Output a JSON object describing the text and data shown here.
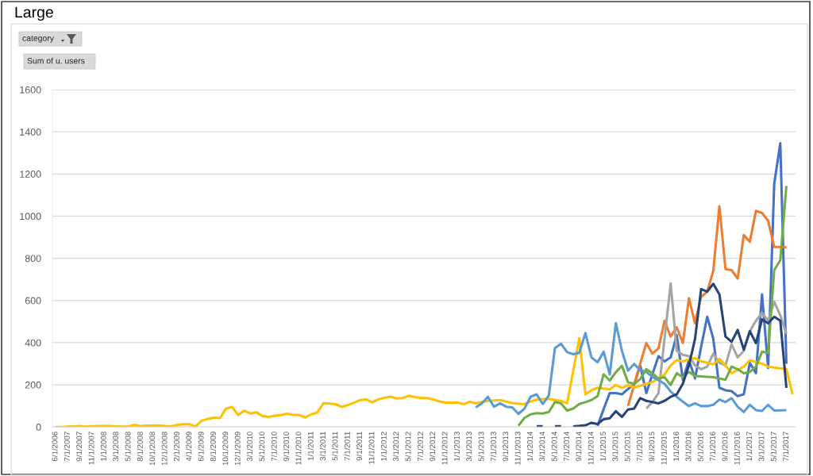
{
  "chart_data": {
    "type": "line",
    "title": "Large",
    "annotations": [
      "category",
      "Sum of u. users"
    ],
    "grid": "y",
    "line_style": "solid",
    "ylim": [
      0,
      1600
    ],
    "yticks": [
      0,
      200,
      400,
      600,
      800,
      1000,
      1200,
      1400,
      1600
    ],
    "categories": [
      "6/1/2006",
      null,
      "7/1/2007",
      null,
      "9/1/2007",
      null,
      "11/1/2007",
      null,
      "1/1/2008",
      null,
      "3/1/2008",
      null,
      "5/1/2008",
      null,
      "8/1/2008",
      null,
      "10/1/2008",
      null,
      "12/1/2008",
      null,
      "2/1/2009",
      null,
      "4/1/2009",
      null,
      "6/1/2009",
      null,
      "8/1/2009",
      null,
      "10/1/2009",
      null,
      "12/1/2009",
      null,
      "3/1/2010",
      null,
      "5/1/2010",
      null,
      "7/1/2010",
      null,
      "9/1/2010",
      null,
      "11/1/2010",
      null,
      "1/1/2011",
      null,
      "3/1/2011",
      null,
      "5/1/2011",
      null,
      "7/1/2011",
      null,
      "9/1/2011",
      null,
      "11/1/2011",
      null,
      "1/1/2012",
      null,
      "3/1/2012",
      null,
      "5/1/2012",
      null,
      "7/1/2012",
      null,
      "9/1/2012",
      null,
      "11/1/2012",
      null,
      "1/1/2013",
      null,
      "3/1/2013",
      null,
      "5/1/2013",
      null,
      "7/1/2013",
      null,
      "9/1/2013",
      null,
      "11/1/2013",
      null,
      "1/1/2014",
      null,
      "3/1/2014",
      null,
      "5/1/2014",
      null,
      "7/1/2014",
      null,
      "9/1/2014",
      null,
      "11/1/2014",
      null,
      "1/1/2015",
      null,
      "3/1/2015",
      null,
      "5/1/2015",
      null,
      "7/1/2015",
      null,
      "9/1/2015",
      null,
      "11/1/2015",
      null,
      "1/1/2016",
      null,
      "3/1/2016",
      null,
      "5/1/2016",
      null,
      "7/1/2016",
      null,
      "9/1/2016",
      null,
      "11/1/2016",
      null,
      "1/1/2017",
      null,
      "3/1/2017",
      null,
      "5/1/2017",
      null,
      "7/1/2017",
      null
    ],
    "series": [
      {
        "color": "#4472c4",
        "values": [
          null,
          null,
          null,
          null,
          null,
          null,
          null,
          null,
          null,
          null,
          null,
          null,
          null,
          null,
          null,
          null,
          null,
          null,
          null,
          null,
          null,
          null,
          null,
          null,
          null,
          null,
          null,
          null,
          null,
          null,
          null,
          null,
          null,
          null,
          null,
          null,
          null,
          null,
          null,
          null,
          null,
          null,
          null,
          null,
          null,
          null,
          null,
          null,
          null,
          null,
          null,
          null,
          null,
          null,
          null,
          null,
          null,
          null,
          null,
          null,
          null,
          null,
          null,
          null,
          null,
          null,
          null,
          null,
          null,
          null,
          null,
          null,
          null,
          null,
          null,
          null,
          null,
          null,
          null,
          null,
          null,
          null,
          null,
          null,
          null,
          null,
          null,
          null,
          null,
          5,
          85,
          161,
          161,
          155,
          180,
          200,
          292,
          161,
          250,
          336,
          311,
          330,
          436,
          224,
          317,
          230,
          380,
          523,
          418,
          186,
          174,
          170,
          146,
          155,
          304,
          255,
          629,
          280,
          1153,
          1346,
          300,
          null
        ]
      },
      {
        "color": "#ed7d31",
        "values": [
          null,
          null,
          null,
          null,
          null,
          null,
          null,
          null,
          null,
          null,
          null,
          null,
          null,
          null,
          null,
          null,
          null,
          null,
          null,
          null,
          null,
          null,
          null,
          null,
          null,
          null,
          null,
          null,
          null,
          null,
          null,
          null,
          null,
          null,
          null,
          null,
          null,
          null,
          null,
          null,
          null,
          null,
          null,
          null,
          null,
          null,
          null,
          null,
          null,
          null,
          null,
          null,
          null,
          null,
          null,
          null,
          null,
          null,
          null,
          null,
          null,
          null,
          null,
          null,
          null,
          null,
          null,
          null,
          null,
          null,
          null,
          null,
          null,
          null,
          null,
          null,
          null,
          null,
          null,
          null,
          null,
          null,
          null,
          null,
          null,
          null,
          null,
          null,
          null,
          null,
          null,
          null,
          null,
          null,
          100,
          200,
          300,
          398,
          348,
          373,
          504,
          429,
          473,
          398,
          610,
          492,
          617,
          642,
          741,
          1047,
          749,
          744,
          704,
          910,
          879,
          1025,
          1015,
          978,
          854,
          854,
          852,
          null
        ]
      },
      {
        "color": "#a5a5a5",
        "values": [
          null,
          null,
          null,
          null,
          null,
          null,
          null,
          null,
          null,
          null,
          null,
          null,
          null,
          null,
          null,
          null,
          null,
          null,
          null,
          null,
          null,
          null,
          null,
          null,
          null,
          null,
          null,
          null,
          null,
          null,
          null,
          null,
          null,
          null,
          null,
          null,
          null,
          null,
          null,
          null,
          null,
          null,
          null,
          null,
          null,
          null,
          null,
          null,
          null,
          null,
          null,
          null,
          null,
          null,
          null,
          null,
          null,
          null,
          null,
          null,
          null,
          null,
          null,
          null,
          null,
          null,
          null,
          null,
          null,
          null,
          null,
          null,
          null,
          null,
          null,
          null,
          null,
          null,
          null,
          null,
          null,
          null,
          null,
          null,
          null,
          null,
          null,
          null,
          null,
          null,
          null,
          null,
          null,
          null,
          null,
          null,
          null,
          87,
          118,
          160,
          420,
          681,
          361,
          342,
          336,
          292,
          274,
          286,
          348,
          304,
          292,
          392,
          330,
          361,
          454,
          504,
          541,
          504,
          594,
          529,
          442,
          null
        ]
      },
      {
        "color": "#ffc000",
        "values": [
          0,
          0,
          2,
          3,
          4,
          2,
          3,
          4,
          4,
          4,
          3,
          2,
          2,
          10,
          4,
          6,
          6,
          7,
          4,
          3,
          10,
          13,
          13,
          2,
          30,
          38,
          44,
          42,
          87,
          95,
          57,
          77,
          64,
          69,
          52,
          48,
          53,
          56,
          63,
          57,
          57,
          45,
          60,
          69,
          113,
          111,
          108,
          95,
          104,
          115,
          127,
          131,
          117,
          131,
          138,
          144,
          135,
          137,
          148,
          142,
          137,
          137,
          131,
          121,
          116,
          115,
          116,
          108,
          120,
          112,
          118,
          124,
          126,
          128,
          120,
          114,
          110,
          109,
          120,
          130,
          132,
          133,
          128,
          124,
          112,
          265,
          420,
          155,
          174,
          186,
          182,
          178,
          199,
          186,
          199,
          187,
          195,
          205,
          212,
          230,
          249,
          292,
          317,
          311,
          320,
          327,
          311,
          305,
          297,
          323,
          292,
          255,
          270,
          286,
          317,
          308,
          300,
          286,
          282,
          278,
          274,
          155
        ]
      },
      {
        "color": "#5b9bd5",
        "values": [
          null,
          null,
          null,
          null,
          null,
          null,
          null,
          null,
          null,
          null,
          null,
          null,
          null,
          null,
          null,
          null,
          null,
          null,
          null,
          null,
          null,
          null,
          null,
          null,
          null,
          null,
          null,
          null,
          null,
          null,
          null,
          null,
          null,
          null,
          null,
          null,
          null,
          null,
          null,
          null,
          null,
          null,
          null,
          null,
          null,
          null,
          null,
          null,
          null,
          null,
          null,
          null,
          null,
          null,
          null,
          null,
          null,
          null,
          null,
          null,
          null,
          null,
          null,
          null,
          null,
          null,
          null,
          null,
          null,
          93,
          112,
          143,
          96,
          112,
          96,
          93,
          62,
          87,
          143,
          155,
          109,
          149,
          374,
          395,
          355,
          345,
          352,
          445,
          330,
          307,
          357,
          249,
          492,
          361,
          267,
          299,
          270,
          261,
          238,
          222,
          205,
          168,
          143,
          120,
          99,
          112,
          99,
          99,
          105,
          130,
          118,
          137,
          96,
          71,
          105,
          80,
          76,
          105,
          78,
          79,
          80,
          null
        ]
      },
      {
        "color": "#70ad47",
        "values": [
          null,
          null,
          null,
          null,
          null,
          null,
          null,
          null,
          null,
          null,
          null,
          null,
          null,
          null,
          null,
          null,
          null,
          null,
          null,
          null,
          null,
          null,
          null,
          null,
          null,
          null,
          null,
          null,
          null,
          null,
          null,
          null,
          null,
          null,
          null,
          null,
          null,
          null,
          null,
          null,
          null,
          null,
          null,
          null,
          null,
          null,
          null,
          null,
          null,
          null,
          null,
          null,
          null,
          null,
          null,
          null,
          null,
          null,
          null,
          null,
          null,
          null,
          null,
          null,
          null,
          null,
          null,
          null,
          null,
          null,
          null,
          null,
          null,
          null,
          null,
          null,
          6,
          43,
          60,
          66,
          64,
          71,
          118,
          112,
          78,
          87,
          109,
          118,
          128,
          146,
          250,
          220,
          260,
          290,
          212,
          205,
          227,
          274,
          255,
          230,
          236,
          199,
          255,
          236,
          261,
          242,
          240,
          238,
          236,
          230,
          224,
          286,
          274,
          255,
          261,
          286,
          357,
          352,
          744,
          791,
          1143,
          null
        ]
      },
      {
        "color": "#264478",
        "values": [
          null,
          null,
          null,
          null,
          null,
          null,
          null,
          null,
          null,
          null,
          null,
          null,
          null,
          null,
          null,
          null,
          null,
          null,
          null,
          null,
          null,
          null,
          null,
          null,
          null,
          null,
          null,
          null,
          null,
          null,
          null,
          null,
          null,
          null,
          null,
          null,
          null,
          null,
          null,
          null,
          null,
          null,
          null,
          null,
          null,
          null,
          null,
          null,
          null,
          null,
          null,
          null,
          null,
          null,
          null,
          null,
          null,
          null,
          null,
          null,
          null,
          null,
          null,
          null,
          null,
          null,
          null,
          null,
          null,
          null,
          null,
          null,
          null,
          null,
          null,
          null,
          null,
          null,
          null,
          3,
          3,
          null,
          3,
          3,
          null,
          3,
          5,
          8,
          20,
          14,
          37,
          41,
          75,
          48,
          83,
          87,
          137,
          124,
          118,
          112,
          124,
          143,
          155,
          205,
          292,
          418,
          654,
          642,
          679,
          629,
          429,
          404,
          460,
          367,
          454,
          398,
          510,
          492,
          523,
          504,
          186,
          null
        ]
      }
    ]
  }
}
